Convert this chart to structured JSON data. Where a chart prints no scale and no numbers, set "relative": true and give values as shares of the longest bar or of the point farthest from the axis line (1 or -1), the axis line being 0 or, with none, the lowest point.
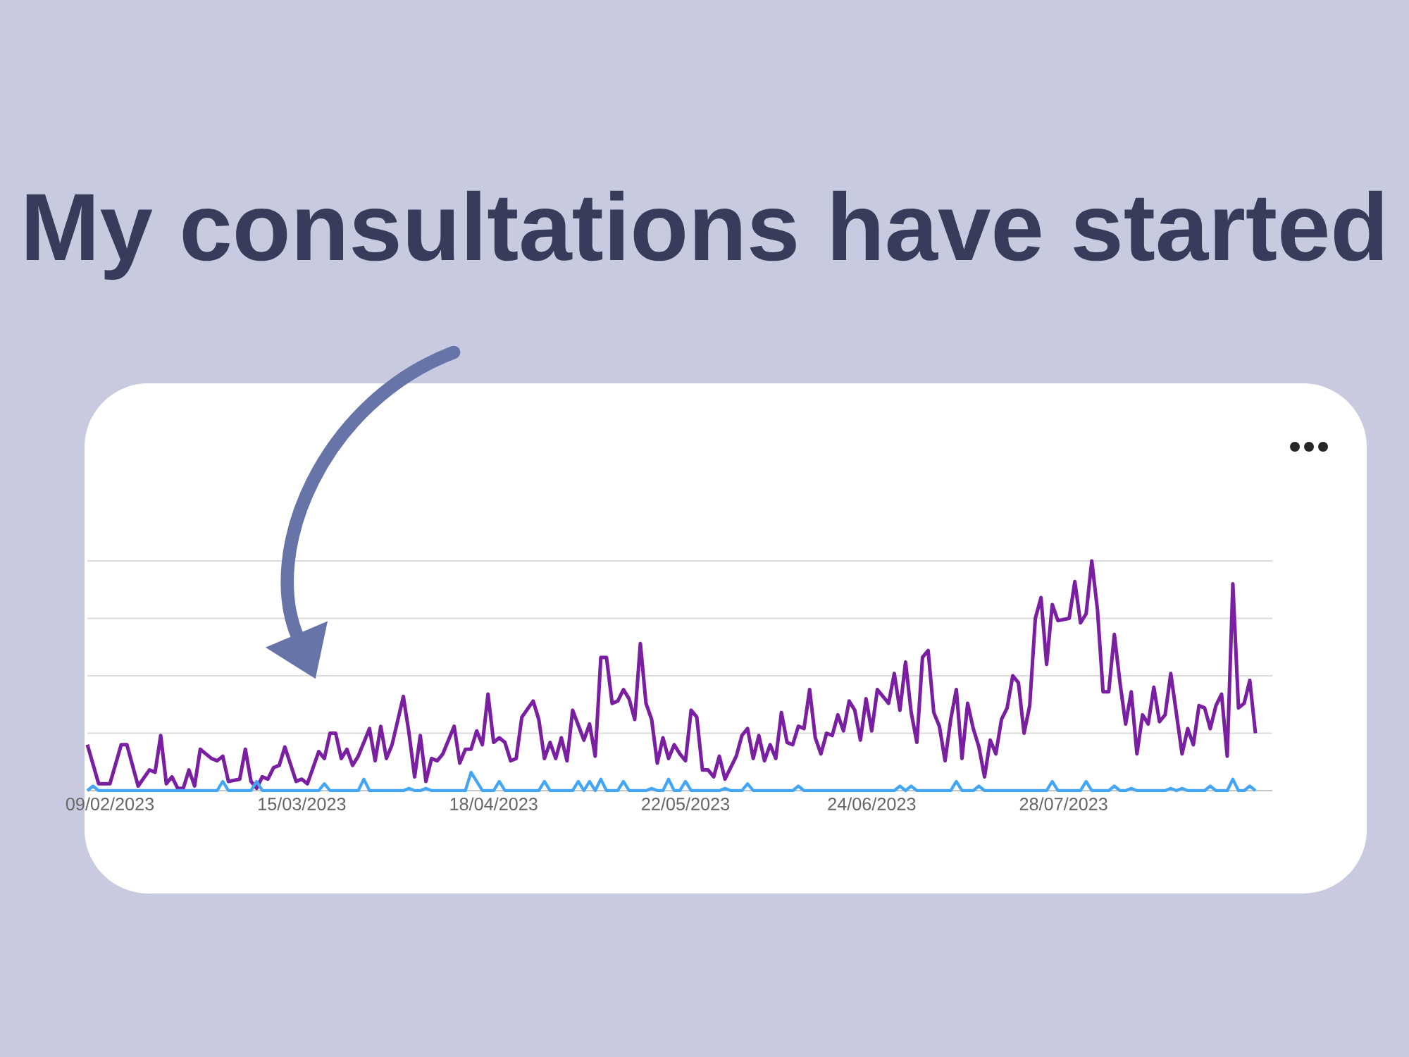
{
  "chart_data": {
    "type": "line",
    "title": "My consultations have started",
    "relative": true,
    "grid": "y",
    "tick_labels": "x",
    "marker": "none",
    "line_style": "solid",
    "xlim": [
      "2023-02-05",
      "2023-09-03"
    ],
    "xticks": [
      {
        "value": "2023-02-09",
        "label": "09/02/2023"
      },
      {
        "value": "2023-03-15",
        "label": "15/03/2023"
      },
      {
        "value": "2023-04-18",
        "label": "18/04/2023"
      },
      {
        "value": "2023-05-22",
        "label": "22/05/2023"
      },
      {
        "value": "2023-06-24",
        "label": "24/06/2023"
      },
      {
        "value": "2023-07-28",
        "label": "28/07/2023"
      }
    ],
    "series": [
      {
        "color": "#7b1fa2",
        "x": [
          "2023-02-05",
          "2023-02-07",
          "2023-02-09",
          "2023-02-11",
          "2023-02-12",
          "2023-02-14",
          "2023-02-16",
          "2023-02-17",
          "2023-02-18",
          "2023-02-19",
          "2023-02-20",
          "2023-02-21",
          "2023-02-22",
          "2023-02-23",
          "2023-02-24",
          "2023-02-25",
          "2023-02-27",
          "2023-02-28",
          "2023-03-01",
          "2023-03-02",
          "2023-03-04",
          "2023-03-05",
          "2023-03-06",
          "2023-03-07",
          "2023-03-08",
          "2023-03-09",
          "2023-03-10",
          "2023-03-11",
          "2023-03-12",
          "2023-03-14",
          "2023-03-15",
          "2023-03-16",
          "2023-03-18",
          "2023-03-19",
          "2023-03-20",
          "2023-03-21",
          "2023-03-22",
          "2023-03-23",
          "2023-03-24",
          "2023-03-25",
          "2023-03-27",
          "2023-03-28",
          "2023-03-29",
          "2023-03-30",
          "2023-03-31",
          "2023-04-02",
          "2023-04-03",
          "2023-04-04",
          "2023-04-05",
          "2023-04-06",
          "2023-04-07",
          "2023-04-08",
          "2023-04-09",
          "2023-04-11",
          "2023-04-12",
          "2023-04-13",
          "2023-04-14",
          "2023-04-15",
          "2023-04-16",
          "2023-04-17",
          "2023-04-18",
          "2023-04-19",
          "2023-04-20",
          "2023-04-21",
          "2023-04-22",
          "2023-04-23",
          "2023-04-25",
          "2023-04-26",
          "2023-04-27",
          "2023-04-28",
          "2023-04-29",
          "2023-04-30",
          "2023-05-01",
          "2023-05-02",
          "2023-05-04",
          "2023-05-05",
          "2023-05-06",
          "2023-05-07",
          "2023-05-08",
          "2023-05-09",
          "2023-05-10",
          "2023-05-11",
          "2023-05-12",
          "2023-05-13",
          "2023-05-14",
          "2023-05-15",
          "2023-05-16",
          "2023-05-17",
          "2023-05-18",
          "2023-05-19",
          "2023-05-20",
          "2023-05-21",
          "2023-05-22",
          "2023-05-23",
          "2023-05-24",
          "2023-05-25",
          "2023-05-26",
          "2023-05-27",
          "2023-05-28",
          "2023-05-29",
          "2023-05-31",
          "2023-06-01",
          "2023-06-02",
          "2023-06-03",
          "2023-06-04",
          "2023-06-05",
          "2023-06-06",
          "2023-06-07",
          "2023-06-08",
          "2023-06-09",
          "2023-06-10",
          "2023-06-11",
          "2023-06-12",
          "2023-06-13",
          "2023-06-14",
          "2023-06-15",
          "2023-06-16",
          "2023-06-17",
          "2023-06-18",
          "2023-06-19",
          "2023-06-20",
          "2023-06-21",
          "2023-06-22",
          "2023-06-23",
          "2023-06-24",
          "2023-06-25",
          "2023-06-27",
          "2023-06-28",
          "2023-06-29",
          "2023-06-30",
          "2023-07-01",
          "2023-07-02",
          "2023-07-03",
          "2023-07-04",
          "2023-07-05",
          "2023-07-06",
          "2023-07-07",
          "2023-07-08",
          "2023-07-09",
          "2023-07-10",
          "2023-07-11",
          "2023-07-12",
          "2023-07-13",
          "2023-07-14",
          "2023-07-15",
          "2023-07-16",
          "2023-07-17",
          "2023-07-18",
          "2023-07-19",
          "2023-07-20",
          "2023-07-21",
          "2023-07-22",
          "2023-07-23",
          "2023-07-24",
          "2023-07-25",
          "2023-07-26",
          "2023-07-27",
          "2023-07-29",
          "2023-07-30",
          "2023-07-31",
          "2023-08-01",
          "2023-08-02",
          "2023-08-03",
          "2023-08-04",
          "2023-08-05",
          "2023-08-06",
          "2023-08-07",
          "2023-08-08",
          "2023-08-09",
          "2023-08-10",
          "2023-08-11",
          "2023-08-12",
          "2023-08-13",
          "2023-08-14",
          "2023-08-15",
          "2023-08-16",
          "2023-08-18",
          "2023-08-19",
          "2023-08-20",
          "2023-08-21",
          "2023-08-22",
          "2023-08-23",
          "2023-08-24",
          "2023-08-25",
          "2023-08-26",
          "2023-08-27",
          "2023-08-28",
          "2023-08-29",
          "2023-08-30",
          "2023-08-31"
        ],
        "values": [
          0.2,
          0.03,
          0.03,
          0.2,
          0.2,
          0.02,
          0.09,
          0.08,
          0.24,
          0.03,
          0.06,
          0.01,
          0.01,
          0.09,
          0.02,
          0.18,
          0.14,
          0.13,
          0.15,
          0.04,
          0.05,
          0.18,
          0.04,
          0.01,
          0.06,
          0.05,
          0.1,
          0.11,
          0.19,
          0.04,
          0.05,
          0.03,
          0.17,
          0.14,
          0.25,
          0.25,
          0.14,
          0.18,
          0.11,
          0.15,
          0.27,
          0.13,
          0.28,
          0.14,
          0.2,
          0.41,
          0.25,
          0.06,
          0.24,
          0.04,
          0.14,
          0.13,
          0.16,
          0.28,
          0.12,
          0.18,
          0.18,
          0.26,
          0.2,
          0.42,
          0.21,
          0.23,
          0.21,
          0.13,
          0.14,
          0.32,
          0.39,
          0.31,
          0.14,
          0.21,
          0.14,
          0.23,
          0.13,
          0.35,
          0.22,
          0.29,
          0.15,
          0.58,
          0.58,
          0.38,
          0.39,
          0.44,
          0.4,
          0.31,
          0.64,
          0.38,
          0.31,
          0.12,
          0.23,
          0.14,
          0.2,
          0.16,
          0.13,
          0.35,
          0.32,
          0.09,
          0.09,
          0.06,
          0.15,
          0.05,
          0.15,
          0.24,
          0.27,
          0.14,
          0.24,
          0.13,
          0.2,
          0.14,
          0.34,
          0.21,
          0.2,
          0.28,
          0.27,
          0.44,
          0.23,
          0.16,
          0.25,
          0.24,
          0.33,
          0.26,
          0.39,
          0.35,
          0.22,
          0.4,
          0.26,
          0.44,
          0.38,
          0.51,
          0.35,
          0.56,
          0.34,
          0.21,
          0.58,
          0.61,
          0.34,
          0.28,
          0.13,
          0.31,
          0.44,
          0.14,
          0.38,
          0.27,
          0.19,
          0.06,
          0.22,
          0.16,
          0.31,
          0.36,
          0.5,
          0.47,
          0.25,
          0.37,
          0.75,
          0.84,
          0.55,
          0.81,
          0.74,
          0.75,
          0.91,
          0.73,
          0.77,
          1,
          0.79,
          0.43,
          0.43,
          0.68,
          0.47,
          0.29,
          0.43,
          0.16,
          0.33,
          0.29,
          0.45,
          0.3,
          0.33,
          0.51,
          0.16,
          0.27,
          0.2,
          0.37,
          0.36,
          0.27,
          0.37,
          0.42,
          0.15,
          0.9,
          0.36,
          0.38,
          0.48,
          0.25
        ]
      },
      {
        "color": "#42a5f5",
        "x": [
          "2023-02-05",
          "2023-02-06",
          "2023-02-07",
          "2023-02-28",
          "2023-03-01",
          "2023-03-02",
          "2023-03-06",
          "2023-03-07",
          "2023-03-08",
          "2023-03-18",
          "2023-03-19",
          "2023-03-20",
          "2023-03-25",
          "2023-03-26",
          "2023-03-27",
          "2023-04-02",
          "2023-04-03",
          "2023-04-04",
          "2023-04-05",
          "2023-04-06",
          "2023-04-07",
          "2023-04-13",
          "2023-04-14",
          "2023-04-15",
          "2023-04-16",
          "2023-04-18",
          "2023-04-19",
          "2023-04-20",
          "2023-04-26",
          "2023-04-27",
          "2023-04-28",
          "2023-05-02",
          "2023-05-03",
          "2023-05-04",
          "2023-05-05",
          "2023-05-06",
          "2023-05-07",
          "2023-05-08",
          "2023-05-10",
          "2023-05-11",
          "2023-05-12",
          "2023-05-15",
          "2023-05-16",
          "2023-05-17",
          "2023-05-18",
          "2023-05-19",
          "2023-05-20",
          "2023-05-21",
          "2023-05-22",
          "2023-05-23",
          "2023-05-28",
          "2023-05-29",
          "2023-05-30",
          "2023-06-01",
          "2023-06-02",
          "2023-06-03",
          "2023-06-10",
          "2023-06-11",
          "2023-06-12",
          "2023-06-28",
          "2023-06-29",
          "2023-06-30",
          "2023-07-01",
          "2023-07-02",
          "2023-07-08",
          "2023-07-09",
          "2023-07-10",
          "2023-07-12",
          "2023-07-13",
          "2023-07-14",
          "2023-07-25",
          "2023-07-26",
          "2023-07-27",
          "2023-07-31",
          "2023-08-01",
          "2023-08-02",
          "2023-08-05",
          "2023-08-06",
          "2023-08-07",
          "2023-08-08",
          "2023-08-09",
          "2023-08-10",
          "2023-08-15",
          "2023-08-16",
          "2023-08-17",
          "2023-08-18",
          "2023-08-19",
          "2023-08-22",
          "2023-08-23",
          "2023-08-24",
          "2023-08-26",
          "2023-08-27",
          "2023-08-28",
          "2023-08-29",
          "2023-08-30",
          "2023-08-31"
        ],
        "values": [
          0,
          0.02,
          0,
          0,
          0.04,
          0,
          0,
          0.04,
          0,
          0,
          0.03,
          0,
          0,
          0.05,
          0,
          0,
          0.01,
          0,
          0,
          0.01,
          0,
          0,
          0.08,
          0.04,
          0,
          0,
          0.04,
          0,
          0,
          0.04,
          0,
          0,
          0.04,
          0,
          0.04,
          0,
          0.05,
          0,
          0,
          0.04,
          0,
          0,
          0.01,
          0,
          0,
          0.05,
          0,
          0,
          0.04,
          0,
          0,
          0.01,
          0,
          0,
          0.03,
          0,
          0,
          0.02,
          0,
          0,
          0.02,
          0,
          0.02,
          0,
          0,
          0.04,
          0,
          0,
          0.02,
          0,
          0,
          0.04,
          0,
          0,
          0.04,
          0,
          0,
          0.02,
          0,
          0,
          0.01,
          0,
          0,
          0.01,
          0,
          0.01,
          0,
          0,
          0.02,
          0,
          0,
          0.05,
          0,
          0,
          0.02,
          0
        ]
      }
    ]
  }
}
